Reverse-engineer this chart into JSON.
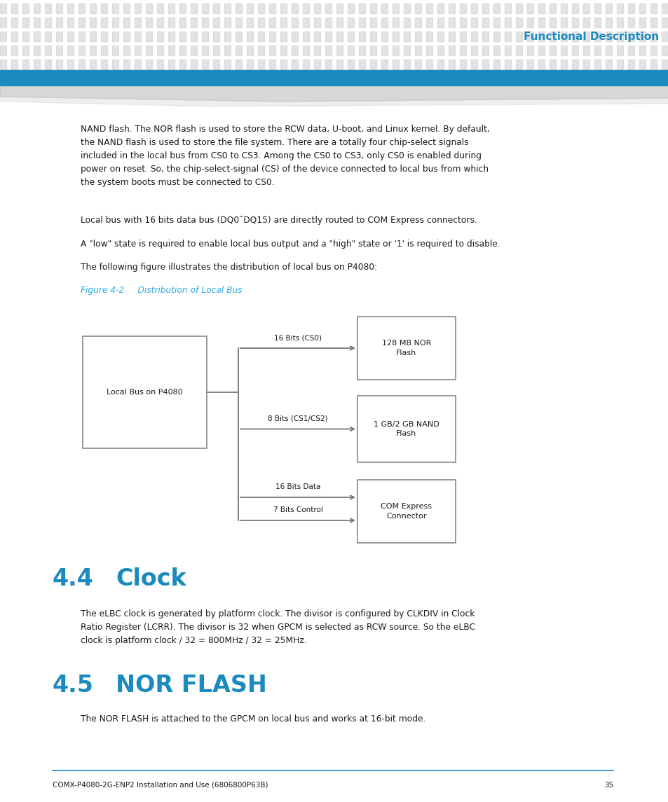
{
  "page_bg": "#ffffff",
  "header_dot_color": "#cccccc",
  "header_bar_color": "#1a8abf",
  "header_text": "Functional Description",
  "header_text_color": "#1a8abf",
  "body_text_color": "#1a1a1a",
  "body_font_size": 8.8,
  "para1": "NAND flash. The NOR flash is used to store the RCW data, U-boot, and Linux kernel. By default,\nthe NAND flash is used to store the file system. There are a totally four chip-select signals\nincluded in the local bus from CS0 to CS3. Among the CS0 to CS3, only CS0 is enabled during\npower on reset. So, the chip-select-signal (CS) of the device connected to local bus from which\nthe system boots must be connected to CS0.",
  "para2": "Local bus with 16 bits data bus (DQ0˜DQ15) are directly routed to COM Express connectors.",
  "para3": "A \"low\" state is required to enable local bus output and a \"high\" state or '1' is required to disable.",
  "para4": "The following figure illustrates the distribution of local bus on P4080:",
  "fig_caption": "Figure 4-2     Distribution of Local Bus",
  "fig_caption_color": "#29abe2",
  "section44_num": "4.4",
  "section44_title": "Clock",
  "section_color": "#1a8abf",
  "section_fontsize": 24,
  "clock_para": "The eLBC clock is generated by platform clock. The divisor is configured by CLKDIV in Clock\nRatio Register (LCRR). The divisor is 32 when GPCM is selected as RCW source. So the eLBC\nclock is platform clock / 32 = 800MHz / 32 = 25MHz.",
  "section45_num": "4.5",
  "section45_title": "NOR FLASH",
  "nor_para": "The NOR FLASH is attached to the GPCM on local bus and works at 16-bit mode.",
  "footer_line_color": "#1a8abf",
  "footer_text": "COMX-P4080-2G-ENP2 Installation and Use (6806800P63B)",
  "footer_page": "35",
  "footer_fontsize": 7.5,
  "arrow_color": "#777777",
  "box_edge_color": "#888888",
  "diag_left_label": "Local Bus on P4080",
  "diag_rb1": "128 MB NOR\nFlash",
  "diag_rb2": "1 GB/2 GB NAND\nFlash",
  "diag_rb3": "COM Express\nConnector",
  "diag_lbl_cs0": "16 Bits (CS0)",
  "diag_lbl_cs1": "8 Bits (CS1/CS2)",
  "diag_lbl_data": "16 Bits Data",
  "diag_lbl_ctrl": "7 Bits Control"
}
